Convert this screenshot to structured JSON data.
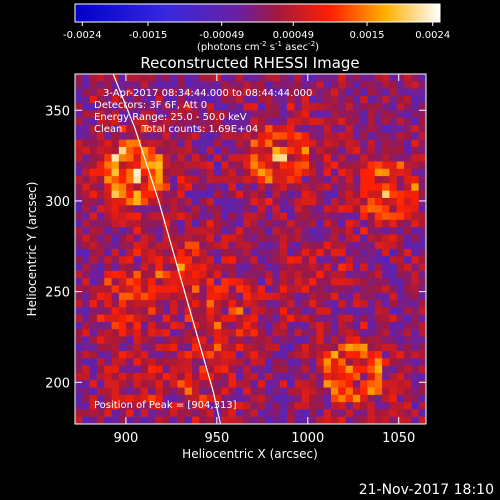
{
  "chart_data": {
    "type": "heatmap",
    "title": "Reconstructed RHESSI Image",
    "xlabel": "Heliocentric X (arcsec)",
    "ylabel": "Heliocentric Y (arcsec)",
    "xlim": [
      872,
      1065
    ],
    "ylim": [
      177,
      370
    ],
    "x_ticks": [
      "900",
      "950",
      "1000",
      "1050"
    ],
    "y_ticks": [
      "200",
      "250",
      "300",
      "350"
    ],
    "x_tick_values": [
      900,
      950,
      1000,
      1050
    ],
    "y_tick_values": [
      200,
      250,
      300,
      350
    ],
    "colorbar": {
      "range": [
        -0.0025,
        0.0025
      ],
      "ticks": [
        "-0.0024",
        "-0.0015",
        "-0.00049",
        "0.00049",
        "0.0015",
        "0.0024"
      ],
      "tick_values": [
        -0.0024,
        -0.0015,
        -0.00049,
        0.00049,
        0.0015,
        0.0024
      ],
      "unit_parts": [
        "(photons cm",
        "-2",
        " s",
        "-1",
        " asec",
        "-2",
        ")"
      ]
    },
    "annotations": {
      "time_range": "3-Apr-2017 08:34:44.000 to 08:44:44.000",
      "detectors": "Detectors: 3F 6F, Att 0",
      "energy": "Energy Range: 25.0 - 50.0 keV",
      "method": "Clean",
      "counts": "Total counts: 1.69E+04",
      "peak": "Position of Peak = [904,313]"
    },
    "peak": [
      904,
      313
    ],
    "sources": [
      {
        "x": 905,
        "y": 315,
        "amp": 0.0027
      },
      {
        "x": 985,
        "y": 325,
        "amp": 0.002
      },
      {
        "x": 1045,
        "y": 305,
        "amp": 0.0018
      },
      {
        "x": 1025,
        "y": 205,
        "amp": 0.002
      },
      {
        "x": 930,
        "y": 265,
        "amp": 0.0012
      },
      {
        "x": 900,
        "y": 245,
        "amp": 0.0011
      },
      {
        "x": 960,
        "y": 240,
        "amp": 0.0011
      },
      {
        "x": 945,
        "y": 205,
        "amp": 0.001
      },
      {
        "x": 905,
        "y": 200,
        "amp": 0.0009
      },
      {
        "x": 1005,
        "y": 260,
        "amp": 0.0009
      }
    ],
    "limb_points": [
      [
        893,
        370
      ],
      [
        905,
        340
      ],
      [
        918,
        300
      ],
      [
        928,
        265
      ],
      [
        938,
        230
      ],
      [
        948,
        195
      ],
      [
        952,
        177
      ]
    ]
  },
  "colors": {
    "background": "#000000",
    "limb": "#ffffff"
  },
  "footer": {
    "date": "21-Nov-2017 18:10"
  }
}
